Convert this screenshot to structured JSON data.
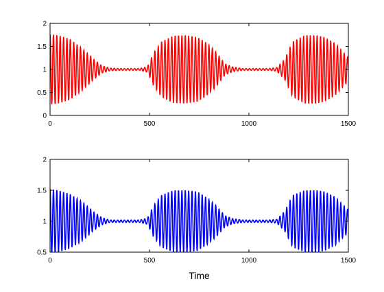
{
  "chart_data": [
    {
      "type": "line",
      "title": "",
      "xlabel": "",
      "ylabel": "",
      "xlim": [
        0,
        1500
      ],
      "ylim": [
        0,
        2
      ],
      "xticks": [
        "0",
        "500",
        "1000",
        "1500"
      ],
      "yticks": [
        "0",
        "0.5",
        "1",
        "1.5",
        "2"
      ],
      "grid": false,
      "legend": "none",
      "series": [
        {
          "color": "#ff0000",
          "baseline": 1.0,
          "oscillation_period": 17,
          "envelope_period": 620,
          "envelope": {
            "x": [
              0,
              40,
              100,
              160,
              220,
              260,
              300,
              350,
              400,
              450,
              490,
              520,
              560,
              620,
              680,
              740,
              780,
              830,
              880,
              920,
              970,
              1020,
              1060,
              1100,
              1140,
              1180,
              1220,
              1280,
              1340,
              1380,
              1430,
              1500
            ],
            "amplitude": [
              0.76,
              0.74,
              0.66,
              0.46,
              0.22,
              0.08,
              0.03,
              0.02,
              0.02,
              0.02,
              0.06,
              0.35,
              0.6,
              0.73,
              0.74,
              0.7,
              0.6,
              0.4,
              0.12,
              0.05,
              0.02,
              0.02,
              0.02,
              0.02,
              0.04,
              0.22,
              0.6,
              0.74,
              0.74,
              0.7,
              0.58,
              0.25
            ]
          }
        }
      ]
    },
    {
      "type": "line",
      "title": "",
      "xlabel": "Time",
      "ylabel": "",
      "xlim": [
        0,
        1500
      ],
      "ylim": [
        0.5,
        2
      ],
      "xticks": [
        "0",
        "500",
        "1000",
        "1500"
      ],
      "yticks": [
        "0.5",
        "1",
        "1.5",
        "2"
      ],
      "grid": false,
      "legend": "none",
      "series": [
        {
          "color": "#0000ff",
          "baseline": 1.0,
          "oscillation_period": 17,
          "envelope_period": 620,
          "envelope": {
            "x": [
              0,
              40,
              100,
              160,
              220,
              260,
              300,
              350,
              400,
              450,
              490,
              520,
              560,
              620,
              680,
              740,
              780,
              830,
              880,
              920,
              970,
              1020,
              1060,
              1100,
              1140,
              1180,
              1220,
              1280,
              1340,
              1380,
              1430,
              1500
            ],
            "amplitude": [
              0.52,
              0.5,
              0.44,
              0.32,
              0.15,
              0.06,
              0.02,
              0.02,
              0.02,
              0.02,
              0.05,
              0.25,
              0.42,
              0.5,
              0.5,
              0.48,
              0.4,
              0.27,
              0.09,
              0.04,
              0.02,
              0.02,
              0.02,
              0.02,
              0.03,
              0.16,
              0.42,
              0.5,
              0.5,
              0.48,
              0.4,
              0.18
            ]
          }
        }
      ]
    }
  ]
}
